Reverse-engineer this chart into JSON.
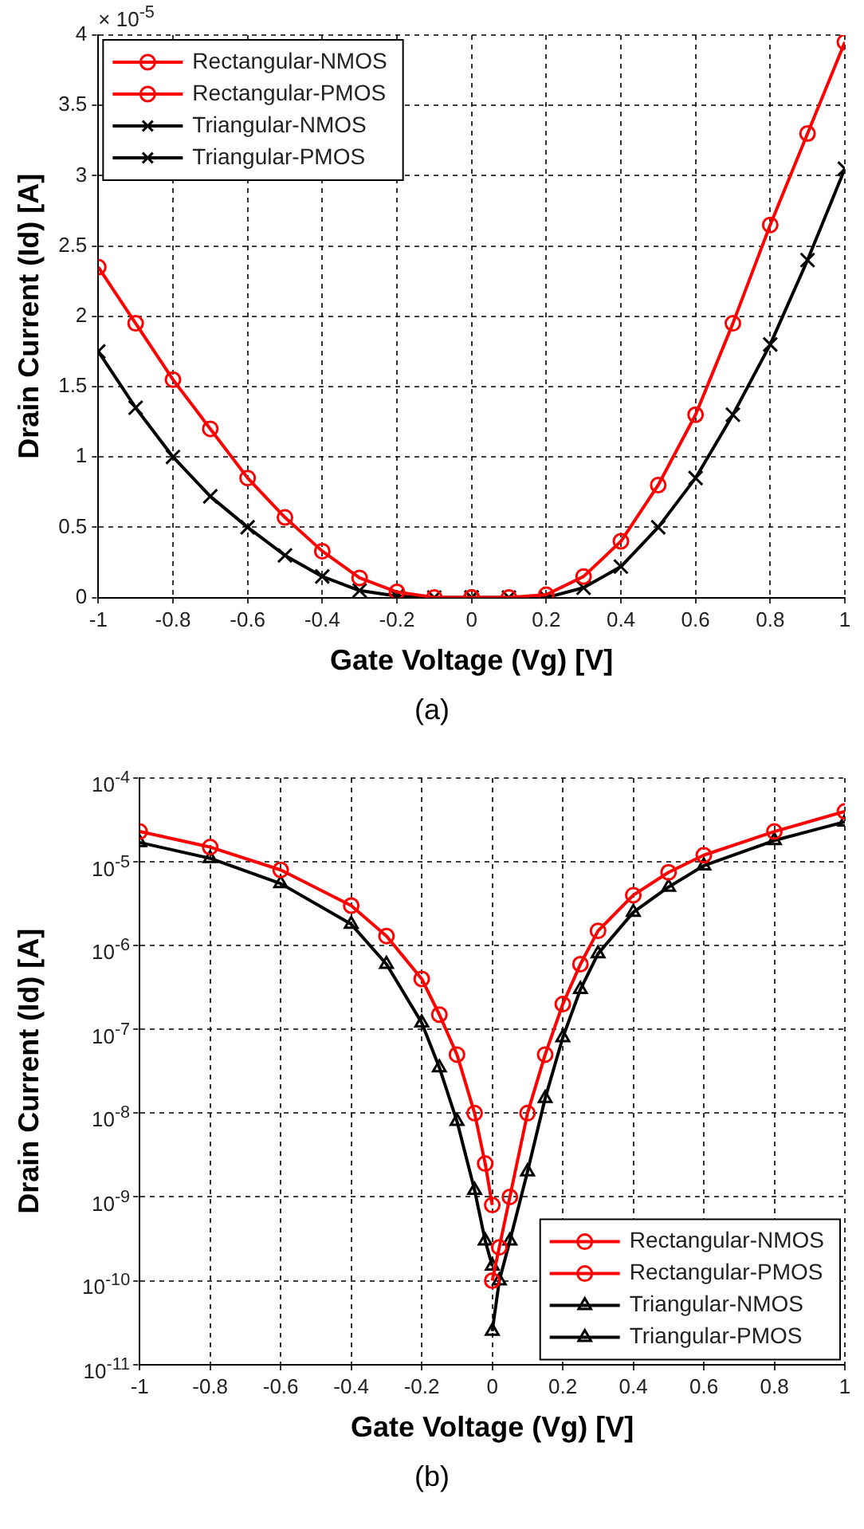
{
  "chart_data": [
    {
      "type": "line",
      "xlabel": "Gate Voltage (Vg) [V]",
      "ylabel": "Drain Current (Id) [A]",
      "annotations": [
        "× 10$^{-5}$",
        "(a)"
      ],
      "xlim": [
        -1,
        1
      ],
      "xticks": [
        -1,
        -0.8,
        -0.6,
        -0.4,
        -0.2,
        0,
        0.2,
        0.4,
        0.6,
        0.8,
        1
      ],
      "ylim": [
        0,
        4
      ],
      "yticks": [
        0,
        0.5,
        1,
        1.5,
        2,
        2.5,
        3,
        3.5,
        4
      ],
      "grid": true,
      "legend": "top left",
      "line_style": "solid",
      "series": [
        {
          "name": "Rectangular-NMOS",
          "color": "#ff0000",
          "marker": "circle",
          "x": [
            0,
            0.1,
            0.2,
            0.3,
            0.4,
            0.5,
            0.6,
            0.7,
            0.8,
            0.9,
            1
          ],
          "values": [
            0,
            0,
            0.02,
            0.15,
            0.4,
            0.8,
            1.3,
            1.95,
            2.65,
            3.3,
            3.95
          ]
        },
        {
          "name": "Rectangular-PMOS",
          "color": "#ff0000",
          "marker": "circle",
          "x": [
            -1,
            -0.9,
            -0.8,
            -0.7,
            -0.6,
            -0.5,
            -0.4,
            -0.3,
            -0.2,
            -0.1,
            0
          ],
          "values": [
            2.35,
            1.95,
            1.55,
            1.2,
            0.85,
            0.57,
            0.33,
            0.14,
            0.04,
            0,
            0
          ]
        },
        {
          "name": "Triangular-NMOS",
          "color": "#000000",
          "marker": "cross",
          "x": [
            0,
            0.1,
            0.2,
            0.3,
            0.4,
            0.5,
            0.6,
            0.7,
            0.8,
            0.9,
            1
          ],
          "values": [
            0,
            0,
            0,
            0.07,
            0.22,
            0.5,
            0.85,
            1.3,
            1.8,
            2.4,
            3.05
          ]
        },
        {
          "name": "Triangular-PMOS",
          "color": "#000000",
          "marker": "cross",
          "x": [
            -1,
            -0.9,
            -0.8,
            -0.7,
            -0.6,
            -0.5,
            -0.4,
            -0.3,
            -0.2,
            -0.1,
            0
          ],
          "values": [
            1.75,
            1.35,
            1.0,
            0.72,
            0.5,
            0.3,
            0.15,
            0.05,
            0.01,
            0,
            0
          ]
        }
      ]
    },
    {
      "type": "line",
      "xlabel": "Gate Voltage (Vg) [V]",
      "ylabel": "Drain Current (Id) [A]",
      "annotations": [
        "(b)"
      ],
      "log": "y",
      "xlim": [
        -1,
        1
      ],
      "xticks": [
        -1,
        -0.8,
        -0.6,
        -0.4,
        -0.2,
        0,
        0.2,
        0.4,
        0.6,
        0.8,
        1
      ],
      "ylim": [
        1e-11,
        0.0001
      ],
      "yticks": [
        {
          "value": 1e-11,
          "label": "10$^{-11}$"
        },
        {
          "value": 1e-10,
          "label": "10$^{-10}$"
        },
        {
          "value": 1e-09,
          "label": "10$^{-9}$"
        },
        {
          "value": 1e-08,
          "label": "10$^{-8}$"
        },
        {
          "value": 1e-07,
          "label": "10$^{-7}$"
        },
        {
          "value": 1e-06,
          "label": "10$^{-6}$"
        },
        {
          "value": 1e-05,
          "label": "10$^{-5}$"
        },
        {
          "value": 0.0001,
          "label": "10$^{-4}$"
        }
      ],
      "grid": true,
      "legend": "bottom right",
      "line_style": "solid",
      "series": [
        {
          "name": "Rectangular-NMOS",
          "color": "#ff0000",
          "marker": "circle",
          "x": [
            0,
            0.02,
            0.05,
            0.1,
            0.15,
            0.2,
            0.25,
            0.3,
            0.4,
            0.5,
            0.6,
            0.8,
            1
          ],
          "values": [
            1e-10,
            2.5e-10,
            1e-09,
            1e-08,
            5e-08,
            2e-07,
            6e-07,
            1.5e-06,
            4e-06,
            7.5e-06,
            1.2e-05,
            2.3e-05,
            4e-05
          ]
        },
        {
          "name": "Rectangular-PMOS",
          "color": "#ff0000",
          "marker": "circle",
          "x": [
            -1,
            -0.8,
            -0.6,
            -0.4,
            -0.3,
            -0.2,
            -0.15,
            -0.1,
            -0.05,
            -0.02,
            0
          ],
          "values": [
            2.3e-05,
            1.5e-05,
            8e-06,
            3e-06,
            1.3e-06,
            4e-07,
            1.5e-07,
            5e-08,
            1e-08,
            2.5e-09,
            8e-10
          ]
        },
        {
          "name": "Triangular-NMOS",
          "color": "#000000",
          "marker": "triangle",
          "x": [
            0,
            0.02,
            0.05,
            0.1,
            0.15,
            0.2,
            0.25,
            0.3,
            0.4,
            0.5,
            0.6,
            0.8,
            1
          ],
          "values": [
            2.5e-11,
            1e-10,
            3e-10,
            2e-09,
            1.5e-08,
            8e-08,
            3e-07,
            8e-07,
            2.5e-06,
            5e-06,
            9e-06,
            1.8e-05,
            3e-05
          ]
        },
        {
          "name": "Triangular-PMOS",
          "color": "#000000",
          "marker": "triangle",
          "x": [
            -1,
            -0.8,
            -0.6,
            -0.4,
            -0.3,
            -0.2,
            -0.15,
            -0.1,
            -0.05,
            -0.02,
            0
          ],
          "values": [
            1.7e-05,
            1.1e-05,
            5.5e-06,
            1.8e-06,
            6e-07,
            1.2e-07,
            3.5e-08,
            8e-09,
            1.2e-09,
            3e-10,
            1.5e-10
          ]
        }
      ]
    }
  ]
}
